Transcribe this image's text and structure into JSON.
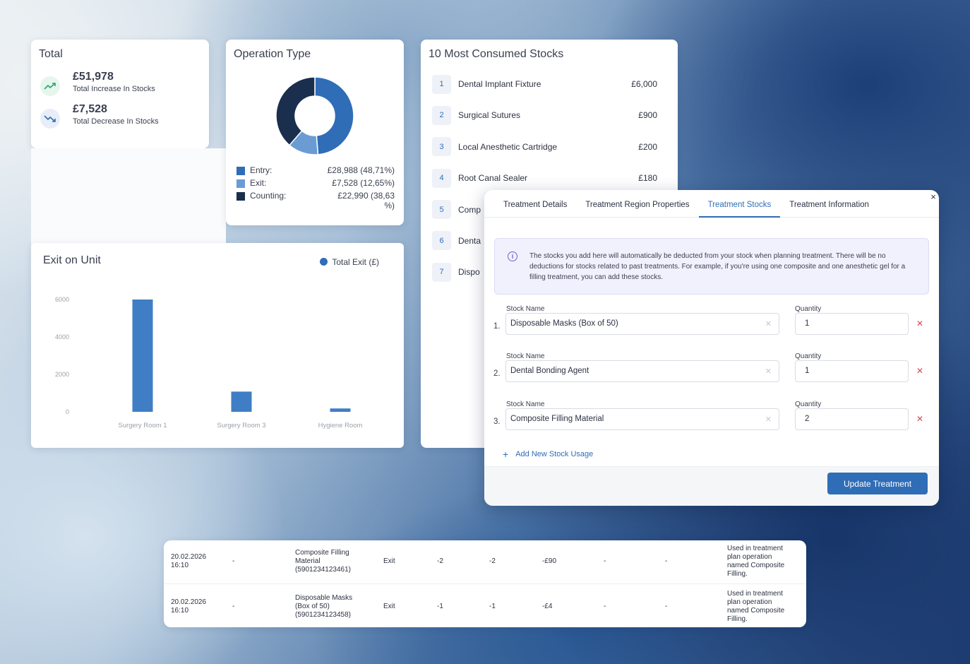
{
  "total": {
    "title": "Total",
    "increase_value": "£51,978",
    "increase_label": "Total Increase In Stocks",
    "decrease_value": "£7,528",
    "decrease_label": "Total Decrease In Stocks"
  },
  "operation_type": {
    "title": "Operation Type",
    "legend": [
      {
        "name": "Entry:",
        "value": "£28,988 (48,71%)",
        "color": "#2f6db7"
      },
      {
        "name": "Exit:",
        "value": "£7,528 (12,65%)",
        "color": "#6b9bd3"
      },
      {
        "name": "Counting:",
        "value_line1": "£22,990 (38,63",
        "value_line2": "%)",
        "color": "#1a2e4d"
      }
    ],
    "donut": [
      48.71,
      12.65,
      38.63
    ]
  },
  "chart_data": {
    "type": "bar",
    "title": "Exit on Unit",
    "categories": [
      "Surgery Room 1",
      "Surgery Room 3",
      "Hygiene Room"
    ],
    "series": [
      {
        "name": "Total Exit (£)",
        "values": [
          6000,
          1080,
          180
        ],
        "color": "#3f7ec4"
      }
    ],
    "yticks": [
      "6000",
      "4000",
      "2000",
      "0"
    ],
    "ylim": [
      0,
      6000
    ],
    "legend": "top-right",
    "grid": false
  },
  "top_stocks": {
    "title": "10 Most Consumed Stocks",
    "items": [
      {
        "rank": "1",
        "name": "Dental Implant Fixture",
        "value": "£6,000"
      },
      {
        "rank": "2",
        "name": "Surgical Sutures",
        "value": "£900"
      },
      {
        "rank": "3",
        "name": "Local Anesthetic Cartridge",
        "value": "£200"
      },
      {
        "rank": "4",
        "name": "Root Canal Sealer",
        "value": "£180"
      },
      {
        "rank": "5",
        "name": "Comp",
        "value": ""
      },
      {
        "rank": "6",
        "name": "Denta",
        "value": ""
      },
      {
        "rank": "7",
        "name": "Dispo",
        "value": ""
      }
    ]
  },
  "modal": {
    "tabs": [
      "Treatment Details",
      "Treatment Region Properties",
      "Treatment Stocks",
      "Treatment Information"
    ],
    "active_tab": "Treatment Stocks",
    "close_glyph": "×",
    "info_text": "The stocks you add here will automatically be deducted from your stock when planning treatment. There will be no deductions for stocks related to past treatments. For example, if you're using one composite and one anesthetic gel for a filling treatment, you can add these stocks.",
    "stock_label": "Stock Name",
    "quantity_label": "Quantity",
    "rows": [
      {
        "index": "1.",
        "stock": "Disposable Masks (Box of 50)",
        "quantity": "1"
      },
      {
        "index": "2.",
        "stock": "Dental Bonding Agent",
        "quantity": "1"
      },
      {
        "index": "3.",
        "stock": "Composite Filling Material",
        "quantity": "2"
      }
    ],
    "add_label": "Add New Stock Usage",
    "update_label": "Update Treatment"
  },
  "table": {
    "rows": [
      {
        "date": "20.02.2026",
        "time": "16:10",
        "c2": "-",
        "product": [
          "Composite Filling",
          "Material",
          "(5901234123461)"
        ],
        "type": "Exit",
        "q1": "-2",
        "q2": "-2",
        "amount": "-£90",
        "c7": "-",
        "c8": "-",
        "note": [
          "Used in treatment",
          "plan operation",
          "named Composite",
          "Filling."
        ]
      },
      {
        "date": "20.02.2026",
        "time": "16:10",
        "c2": "-",
        "product": [
          "Disposable Masks",
          "(Box of 50)",
          "(5901234123458)"
        ],
        "type": "Exit",
        "q1": "-1",
        "q2": "-1",
        "amount": "-£4",
        "c7": "-",
        "c8": "-",
        "note": [
          "Used in treatment",
          "plan operation",
          "named Composite",
          "Filling."
        ]
      }
    ]
  }
}
